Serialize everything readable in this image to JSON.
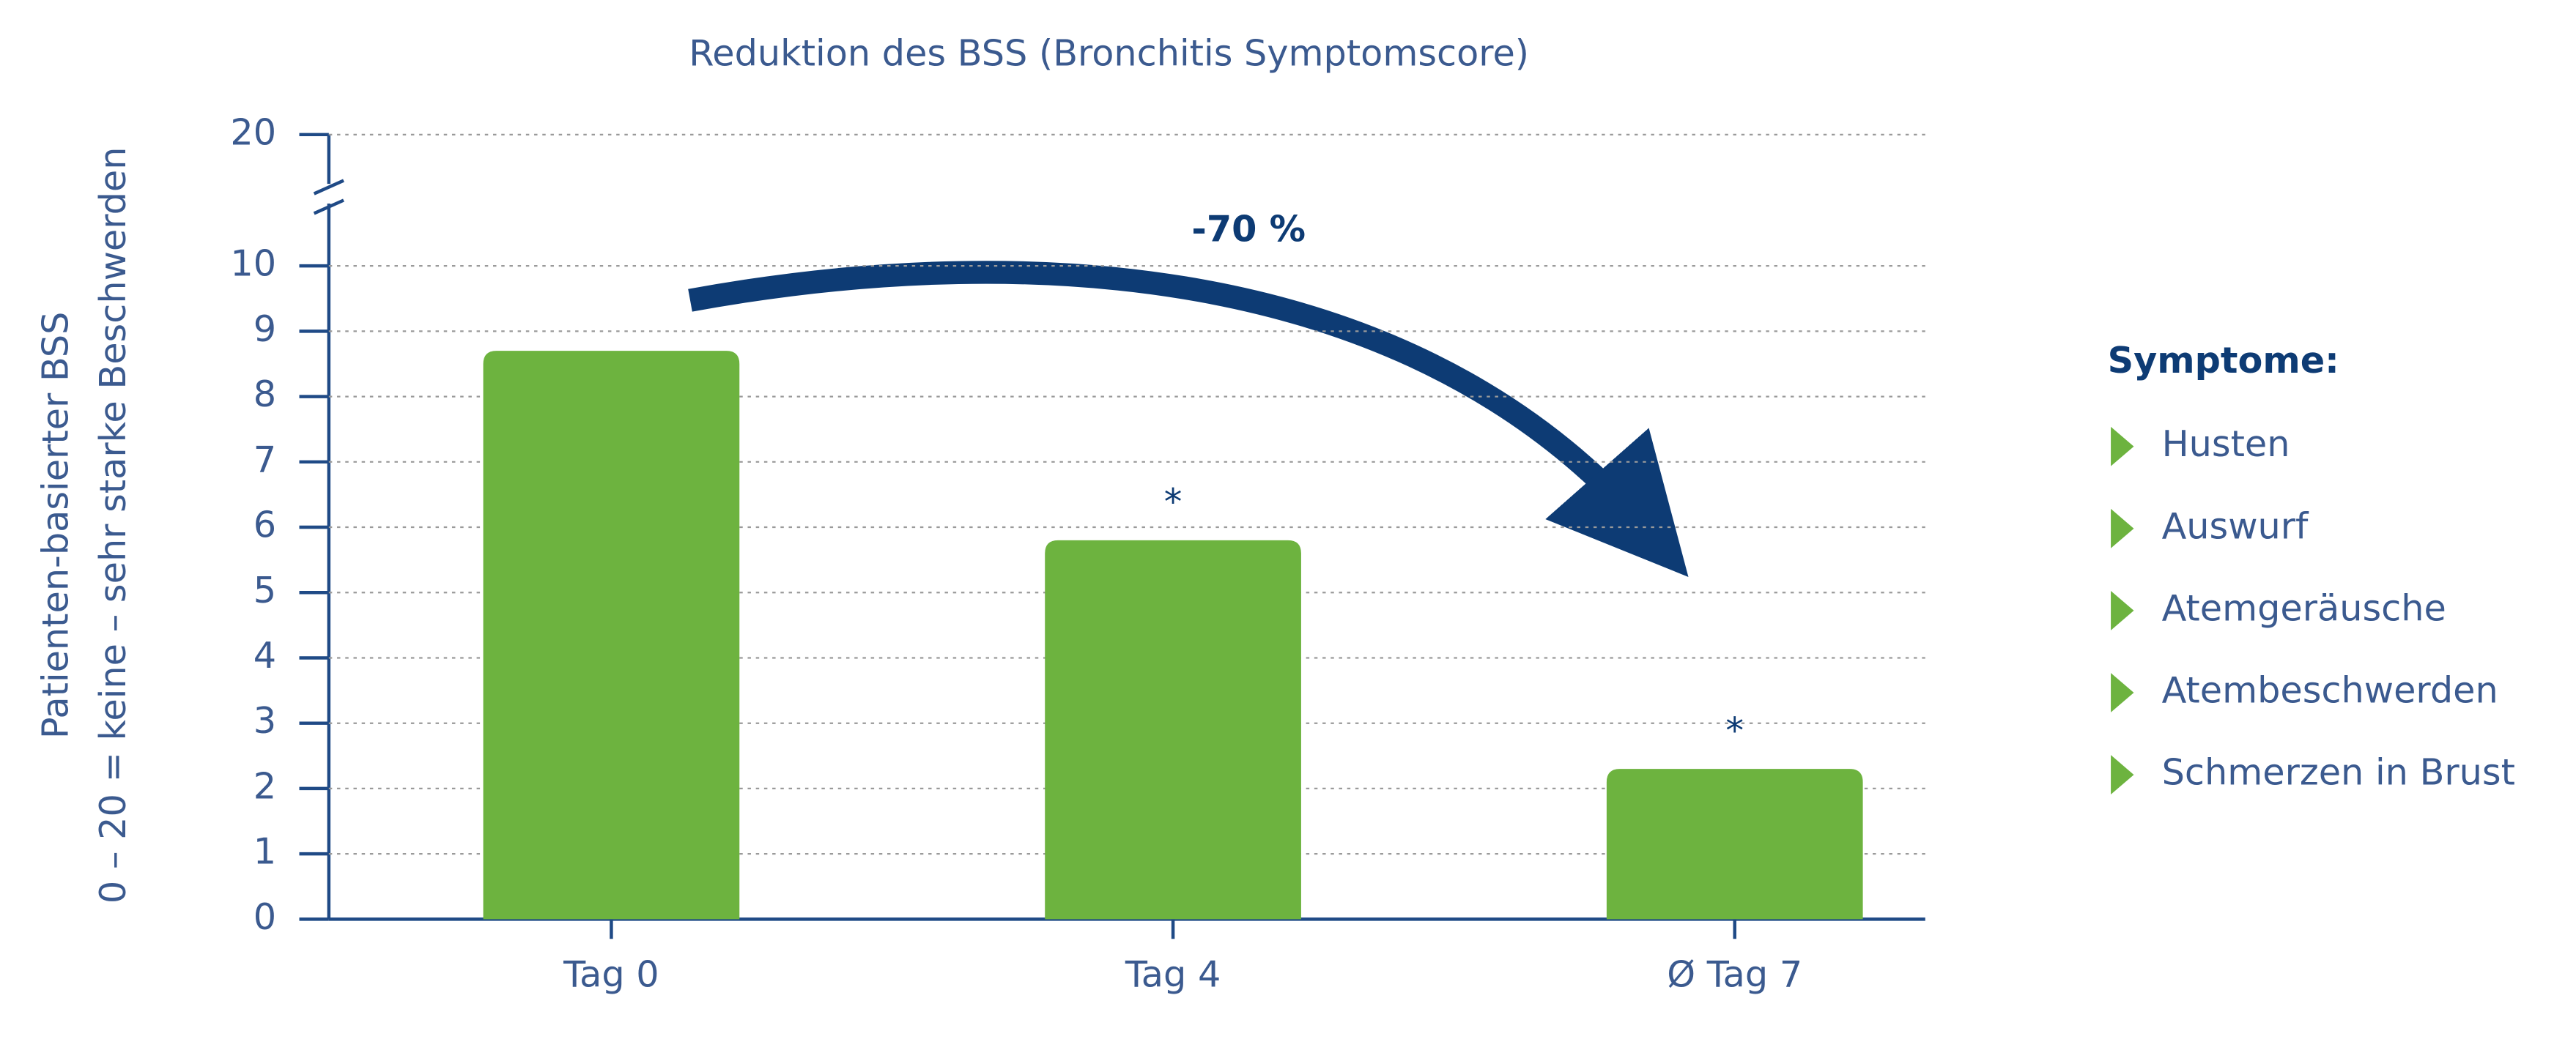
{
  "chart_data": {
    "type": "bar",
    "title": "Reduktion des BSS (Bronchitis Symptomscore)",
    "y_label": [
      "Patienten-basierter BSS",
      "0 – 20 = keine – sehr starke Beschwerden"
    ],
    "categories": [
      "Tag 0",
      "Tag 4",
      "Ø Tag 7"
    ],
    "values": [
      8.7,
      5.8,
      2.3
    ],
    "color": "#6db33f",
    "significance": [
      null,
      "*",
      "*"
    ],
    "annotation": "-70 %",
    "ylim": [
      0,
      20
    ],
    "yticks": [
      0,
      1,
      2,
      3,
      4,
      5,
      6,
      7,
      8,
      9,
      10,
      20
    ],
    "y_axis_break": true,
    "grid": true,
    "legend": {
      "title": "Symptome:",
      "items": [
        "Husten",
        "Auswurf",
        "Atemgeräusche",
        "Atembeschwerden",
        "Schmerzen in Brust"
      ]
    }
  }
}
